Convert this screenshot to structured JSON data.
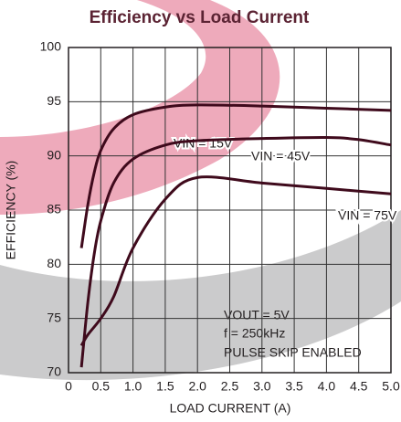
{
  "chart_data": {
    "type": "line",
    "title": "Efficiency vs Load Current",
    "x_label": "LOAD CURRENT (A)",
    "y_label": "EFFICIENCY (%)",
    "annotations": [
      "VOUT = 5V",
      "f = 250kHz",
      "PULSE SKIP ENABLED"
    ],
    "xlim": [
      0,
      5
    ],
    "ylim": [
      70,
      100
    ],
    "xticks": [
      0,
      0.5,
      {
        "value": 1,
        "label": "1.0"
      },
      1.5,
      {
        "value": 2,
        "label": "2.0"
      },
      2.5,
      {
        "value": 3,
        "label": "3.0"
      },
      3.5,
      {
        "value": 4,
        "label": "4.0"
      },
      4.5,
      {
        "value": 5,
        "label": "5.0"
      }
    ],
    "yticks": [
      70,
      75,
      80,
      85,
      90,
      95,
      100
    ],
    "grid": true,
    "series": [
      {
        "name": "VIN = 15V",
        "color": "#3f0a1c",
        "x": [
          0.2,
          0.3,
          0.4,
          0.5,
          0.7,
          1.0,
          1.5,
          2.0,
          3.0,
          4.0,
          5.0
        ],
        "values": [
          81.5,
          85.5,
          88.5,
          90.5,
          92.5,
          93.8,
          94.5,
          94.7,
          94.6,
          94.4,
          94.2
        ]
      },
      {
        "name": "VIN = 45V",
        "color": "#3f0a1c",
        "x": [
          0.2,
          0.3,
          0.4,
          0.5,
          0.7,
          1.0,
          1.5,
          2.0,
          3.0,
          4.0,
          4.5,
          5.0
        ],
        "values": [
          70.5,
          76.5,
          81,
          84,
          87.5,
          89.7,
          91,
          91.4,
          91.6,
          91.7,
          91.5,
          91.0
        ]
      },
      {
        "name": "VIN = 75V",
        "color": "#3f0a1c",
        "x": [
          0.2,
          0.3,
          0.5,
          0.7,
          1.0,
          1.5,
          2.0,
          3.0,
          4.0,
          5.0
        ],
        "values": [
          72.5,
          73.5,
          75,
          77,
          81.5,
          86,
          88,
          87.5,
          87,
          86.5
        ]
      }
    ]
  }
}
